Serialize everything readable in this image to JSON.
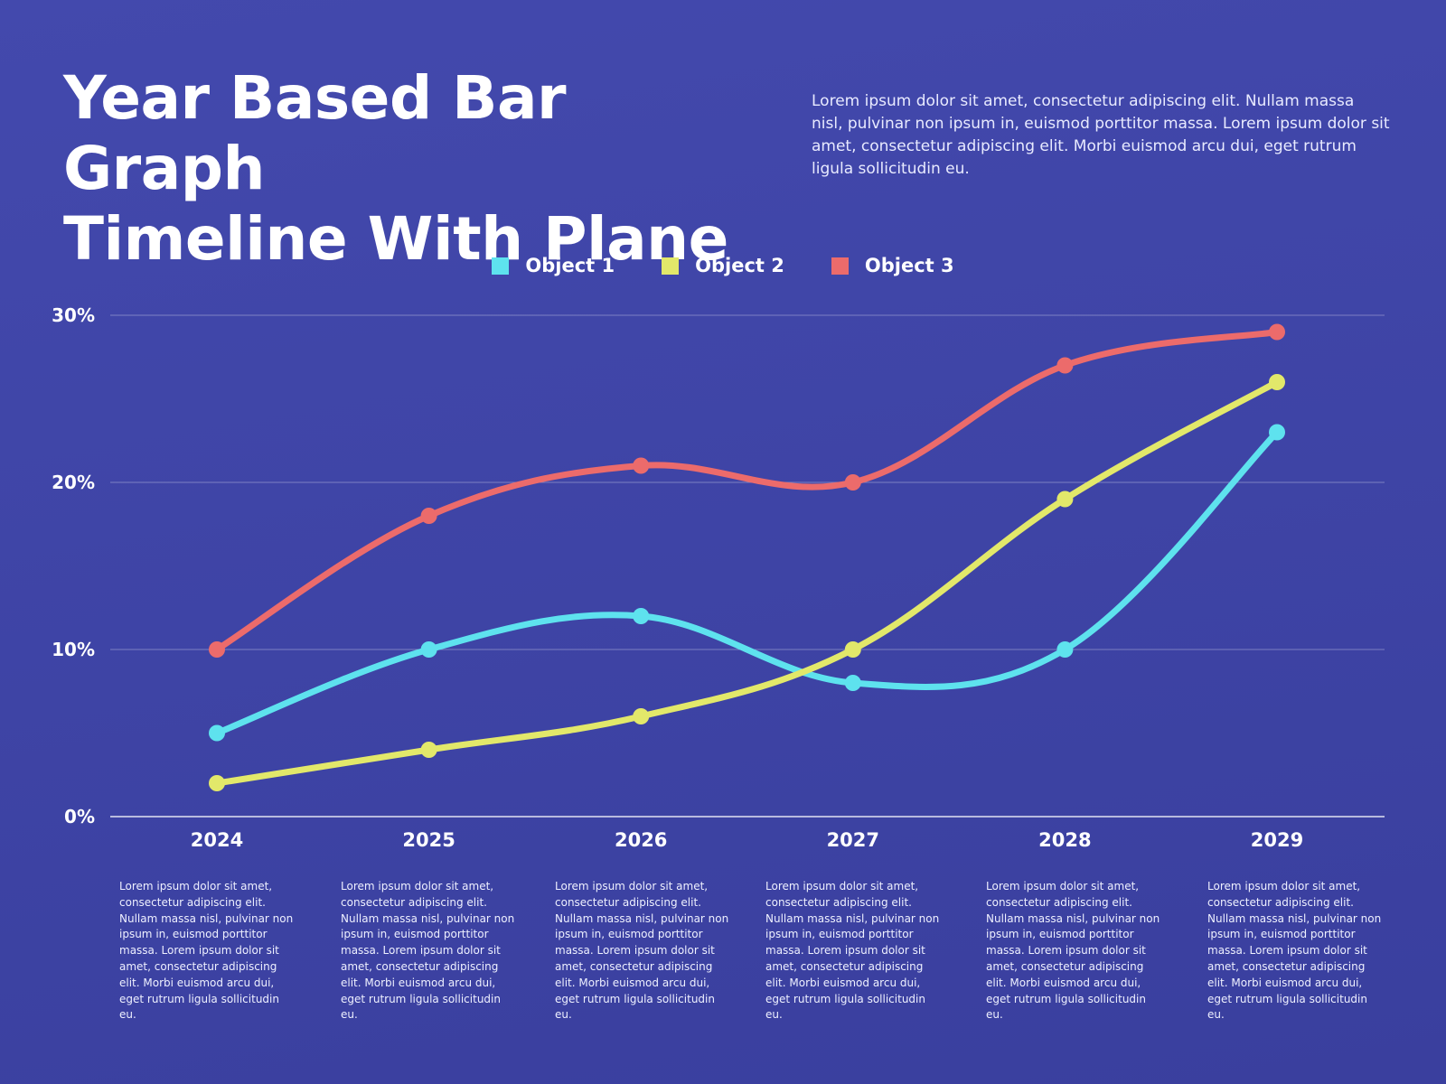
{
  "header": {
    "title_line1": "Year Based Bar Graph",
    "title_line2": "Timeline With Plane",
    "intro": "Lorem ipsum dolor sit amet, consectetur adipiscing elit. Nullam massa nisl, pulvinar non ipsum in, euismod porttitor massa. Lorem ipsum dolor sit amet, consectetur adipiscing elit. Morbi euismod arcu dui, eget rutrum ligula sollicitudin eu."
  },
  "colors": {
    "background": "#4349ad",
    "object1": "#5ee2ee",
    "object2": "#e2e86a",
    "object3": "#ec6b6b"
  },
  "chart_data": {
    "type": "line",
    "x": [
      "2024",
      "2025",
      "2026",
      "2027",
      "2028",
      "2029"
    ],
    "ylim": [
      0,
      30
    ],
    "yticks": [
      "0%",
      "10%",
      "20%",
      "30%"
    ],
    "grid": true,
    "legend_position": "top-center",
    "series": [
      {
        "name": "Object 1",
        "values": [
          5,
          10,
          12,
          8,
          10,
          23
        ]
      },
      {
        "name": "Object 2",
        "values": [
          2,
          4,
          6,
          10,
          19,
          26
        ]
      },
      {
        "name": "Object 3",
        "values": [
          10,
          18,
          21,
          20,
          27,
          29
        ]
      }
    ]
  },
  "descriptions": [
    "Lorem ipsum dolor sit amet, consectetur adipiscing elit. Nullam massa nisl, pulvinar non ipsum in, euismod porttitor massa. Lorem ipsum dolor sit amet, consectetur adipiscing elit. Morbi euismod arcu dui, eget rutrum ligula sollicitudin eu.",
    "Lorem ipsum dolor sit amet, consectetur adipiscing elit. Nullam massa nisl, pulvinar non ipsum in, euismod porttitor massa. Lorem ipsum dolor sit amet, consectetur adipiscing elit. Morbi euismod arcu dui, eget rutrum ligula sollicitudin eu.",
    "Lorem ipsum dolor sit amet, consectetur adipiscing elit. Nullam massa nisl, pulvinar non ipsum in, euismod porttitor massa. Lorem ipsum dolor sit amet, consectetur adipiscing elit. Morbi euismod arcu dui, eget rutrum ligula sollicitudin eu.",
    "Lorem ipsum dolor sit amet, consectetur adipiscing elit. Nullam massa nisl, pulvinar non ipsum in, euismod porttitor massa. Lorem ipsum dolor sit amet, consectetur adipiscing elit. Morbi euismod arcu dui, eget rutrum ligula sollicitudin eu.",
    "Lorem ipsum dolor sit amet, consectetur adipiscing elit. Nullam massa nisl, pulvinar non ipsum in, euismod porttitor massa. Lorem ipsum dolor sit amet, consectetur adipiscing elit. Morbi euismod arcu dui, eget rutrum ligula sollicitudin eu.",
    "Lorem ipsum dolor sit amet, consectetur adipiscing elit. Nullam massa nisl, pulvinar non ipsum in, euismod porttitor massa. Lorem ipsum dolor sit amet, consectetur adipiscing elit. Morbi euismod arcu dui, eget rutrum ligula sollicitudin eu."
  ]
}
